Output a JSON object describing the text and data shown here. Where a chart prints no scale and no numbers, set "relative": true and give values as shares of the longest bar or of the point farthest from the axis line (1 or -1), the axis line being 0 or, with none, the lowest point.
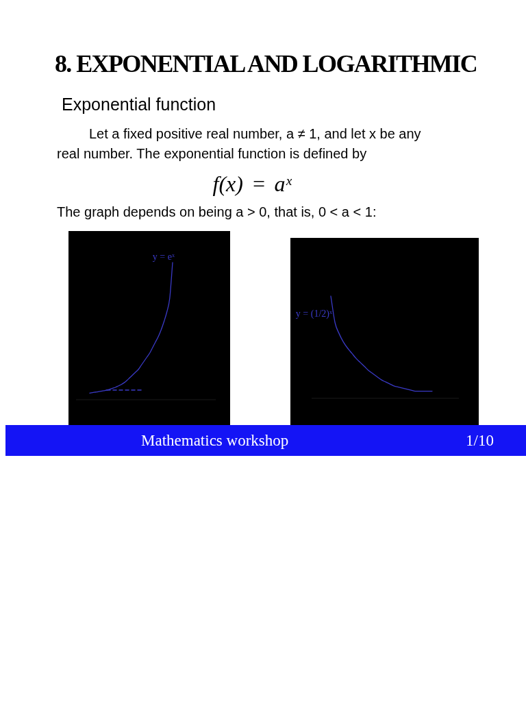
{
  "chart_data": [
    {
      "type": "line",
      "title": "8. EXPONENTIAL AND LOGARITHMIC",
      "subtitle": "Exponential function",
      "annotations": [
        "Let a fixed positive real number, a ≠ 1, and let x be any real number. The exponential function is defined by",
        "f(x) = aˣ",
        "The graph depends on being a > 0, that is, 0 < a < 1:",
        "Mathematics workshop",
        "1/10"
      ],
      "relative": true,
      "categories": [
        null,
        null,
        null,
        null,
        null,
        null,
        null,
        null,
        null,
        null,
        null,
        null,
        null,
        null,
        null,
        null,
        null,
        null,
        null,
        null,
        null,
        null,
        null,
        null,
        null,
        null,
        null,
        null,
        null,
        null
      ],
      "series": [
        {
          "name": "y = eˣ",
          "color": "#3a3ac6",
          "values": [
            0.048,
            0.052,
            0.055,
            0.058,
            0.062,
            0.066,
            0.07,
            0.076,
            0.083,
            0.09,
            0.1,
            0.11,
            0.123,
            0.14,
            0.16,
            0.18,
            0.2,
            0.22,
            0.25,
            0.28,
            0.31,
            0.34,
            0.38,
            0.42,
            0.46,
            0.51,
            0.57,
            0.64,
            0.74,
            1
          ]
        },
        {
          "color": "#3a3ac6",
          "line_style": "dashed",
          "values": [
            null,
            null,
            null,
            null,
            null,
            null,
            0.07,
            0.07,
            0.07,
            0.07,
            0.07,
            0.07,
            0.07,
            0.07,
            0.07,
            0.07,
            0.07,
            0.07,
            0.07,
            null,
            null,
            null,
            null,
            null,
            null,
            null,
            null,
            null,
            null,
            null
          ]
        }
      ]
    },
    {
      "type": "line",
      "relative": true,
      "categories": [
        null,
        null,
        null,
        null,
        null,
        null,
        null,
        null,
        null,
        null,
        null,
        null,
        null,
        null,
        null,
        null,
        null,
        null,
        null,
        null,
        null,
        null,
        null,
        null,
        null
      ],
      "series": [
        {
          "name": "y = (1/2)ˣ",
          "color": "#3a3ac6",
          "values": [
            1,
            0.74,
            0.63,
            0.55,
            0.49,
            0.44,
            0.39,
            0.35,
            0.31,
            0.27,
            0.24,
            0.21,
            0.18,
            0.16,
            0.14,
            0.12,
            0.11,
            0.1,
            0.09,
            0.08,
            0.07,
            0.07,
            0.07,
            0.07,
            0.07
          ]
        }
      ]
    }
  ]
}
